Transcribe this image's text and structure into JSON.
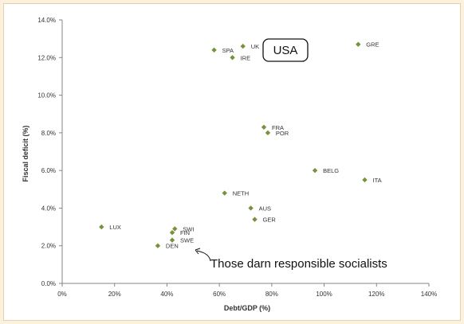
{
  "chart_data": {
    "type": "scatter",
    "xlabel": "Debt/GDP (%)",
    "ylabel": "Fiscal deficit (%)",
    "xlim": [
      0,
      140
    ],
    "ylim": [
      0,
      14
    ],
    "x_ticks": [
      "0%",
      "20%",
      "40%",
      "60%",
      "80%",
      "100%",
      "120%",
      "140%"
    ],
    "y_ticks": [
      "0.0%",
      "2.0%",
      "4.0%",
      "6.0%",
      "8.0%",
      "10.0%",
      "12.0%",
      "14.0%"
    ],
    "grid": false,
    "marker_color": "#76923c",
    "points": [
      {
        "label": "GRE",
        "x": 113,
        "y": 12.7
      },
      {
        "label": "SPA",
        "x": 58,
        "y": 12.4
      },
      {
        "label": "UK",
        "x": 69,
        "y": 12.6
      },
      {
        "label": "IRE",
        "x": 65,
        "y": 12.0
      },
      {
        "label": "FRA",
        "x": 77,
        "y": 8.3
      },
      {
        "label": "POR",
        "x": 78.5,
        "y": 8.0
      },
      {
        "label": "BELG",
        "x": 96.5,
        "y": 6.0
      },
      {
        "label": "ITA",
        "x": 115.5,
        "y": 5.5
      },
      {
        "label": "NETH",
        "x": 62,
        "y": 4.8
      },
      {
        "label": "AUS",
        "x": 72,
        "y": 4.0
      },
      {
        "label": "GER",
        "x": 73.5,
        "y": 3.4
      },
      {
        "label": "LUX",
        "x": 15,
        "y": 3.0
      },
      {
        "label": "SWI",
        "x": 43,
        "y": 2.9
      },
      {
        "label": "FIN",
        "x": 42,
        "y": 2.7
      },
      {
        "label": "SWE",
        "x": 42,
        "y": 2.3
      },
      {
        "label": "DEN",
        "x": 36.5,
        "y": 2.0
      }
    ],
    "annotations": [
      {
        "text": "USA",
        "style": "boxed"
      },
      {
        "text": "Those darn responsible socialists",
        "style": "arrow"
      }
    ]
  }
}
